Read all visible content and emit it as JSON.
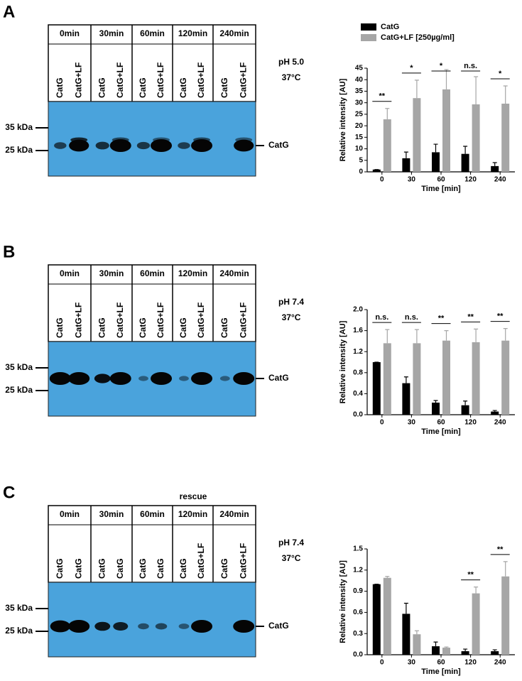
{
  "panels": [
    {
      "label": "A",
      "blot": {
        "time_headers": [
          "0min",
          "30min",
          "60min",
          "120min",
          "240min"
        ],
        "lane_labels": [
          "CatG",
          "CatG+LF",
          "CatG",
          "CatG+LF",
          "CatG",
          "CatG+LF",
          "CatG",
          "CatG+LF",
          "CatG",
          "CatG+LF"
        ],
        "markers": [
          "35 kDa",
          "25 kDa"
        ],
        "band_label": "CatG",
        "conditions": [
          "pH 5.0",
          "37°C"
        ]
      }
    },
    {
      "label": "B",
      "blot": {
        "time_headers": [
          "0min",
          "30min",
          "60min",
          "120min",
          "240min"
        ],
        "lane_labels": [
          "CatG",
          "CatG+LF",
          "CatG",
          "CatG+LF",
          "CatG",
          "CatG+LF",
          "CatG",
          "CatG+LF",
          "CatG",
          "CatG+LF"
        ],
        "markers": [
          "35 kDa",
          "25 kDa"
        ],
        "band_label": "CatG",
        "conditions": [
          "pH 7.4",
          "37°C"
        ]
      }
    },
    {
      "label": "C",
      "blot": {
        "note": "rescue",
        "time_headers": [
          "0min",
          "30min",
          "60min",
          "120min",
          "240min"
        ],
        "lane_labels": [
          "CatG",
          "CatG",
          "CatG",
          "CatG",
          "CatG",
          "CatG",
          "CatG",
          "CatG+LF",
          "CatG",
          "CatG+LF"
        ],
        "markers": [
          "35 kDa",
          "25 kDa"
        ],
        "band_label": "CatG",
        "conditions": [
          "pH 7.4",
          "37°C"
        ]
      }
    }
  ],
  "chart_data": [
    {
      "type": "bar",
      "x_label": "Time [min]",
      "y_label": "Relative intensity [AU]",
      "categories": [
        "0",
        "30",
        "60",
        "120",
        "240"
      ],
      "series": [
        {
          "name": "CatG",
          "color": "#000000",
          "values": [
            1,
            5.9,
            8.5,
            7.8,
            2.5
          ],
          "errors": [
            0,
            2.7,
            3.5,
            3.3,
            1.5
          ]
        },
        {
          "name": "CatG+LF [250µg/ml]",
          "color": "#a6a6a6",
          "values": [
            22.8,
            32,
            35.8,
            29.3,
            29.6
          ],
          "errors": [
            4.7,
            7.8,
            8.6,
            12,
            7.7
          ]
        }
      ],
      "significance": [
        "**",
        "*",
        "*",
        "n.s.",
        "*"
      ],
      "ylim": [
        0,
        45
      ],
      "yticks": [
        0,
        5,
        10,
        15,
        20,
        25,
        30,
        35,
        40,
        45
      ]
    },
    {
      "type": "bar",
      "x_label": "Time [min]",
      "y_label": "Relative intensity [AU]",
      "categories": [
        "0",
        "30",
        "60",
        "120",
        "240"
      ],
      "series": [
        {
          "color": "#000000",
          "values": [
            1.0,
            0.6,
            0.23,
            0.18,
            0.06
          ],
          "errors": [
            0,
            0.12,
            0.04,
            0.08,
            0.02
          ]
        },
        {
          "color": "#a6a6a6",
          "values": [
            1.36,
            1.36,
            1.41,
            1.38,
            1.41
          ],
          "errors": [
            0.26,
            0.26,
            0.19,
            0.25,
            0.23
          ]
        }
      ],
      "significance": [
        "n.s.",
        "n.s.",
        "**",
        "**",
        "**"
      ],
      "ylim": [
        0,
        2
      ],
      "yticks": [
        {
          "value": 0,
          "label": "0.0"
        },
        0.4,
        0.8,
        1.2,
        1.6,
        {
          "value": 2,
          "label": "2.0"
        }
      ]
    },
    {
      "type": "bar",
      "x_label": "Time [min]",
      "y_label": "Relative intensity [AU]",
      "categories": [
        "0",
        "30",
        "60",
        "120",
        "240"
      ],
      "series": [
        {
          "color": "#000000",
          "values": [
            1.0,
            0.58,
            0.12,
            0.05,
            0.05
          ],
          "errors": [
            0,
            0.15,
            0.06,
            0.03,
            0.02
          ]
        },
        {
          "color": "#a6a6a6",
          "values": [
            1.09,
            0.29,
            0.1,
            0.87,
            1.11
          ],
          "errors": [
            0.02,
            0.05,
            0.01,
            0.09,
            0.21
          ]
        }
      ],
      "significance": [
        null,
        null,
        null,
        "**",
        "**"
      ],
      "ylim": [
        0,
        1.5
      ],
      "yticks": [
        {
          "value": 0,
          "label": "0.0"
        },
        0.3,
        0.6,
        0.9,
        1.2,
        1.5
      ]
    }
  ]
}
